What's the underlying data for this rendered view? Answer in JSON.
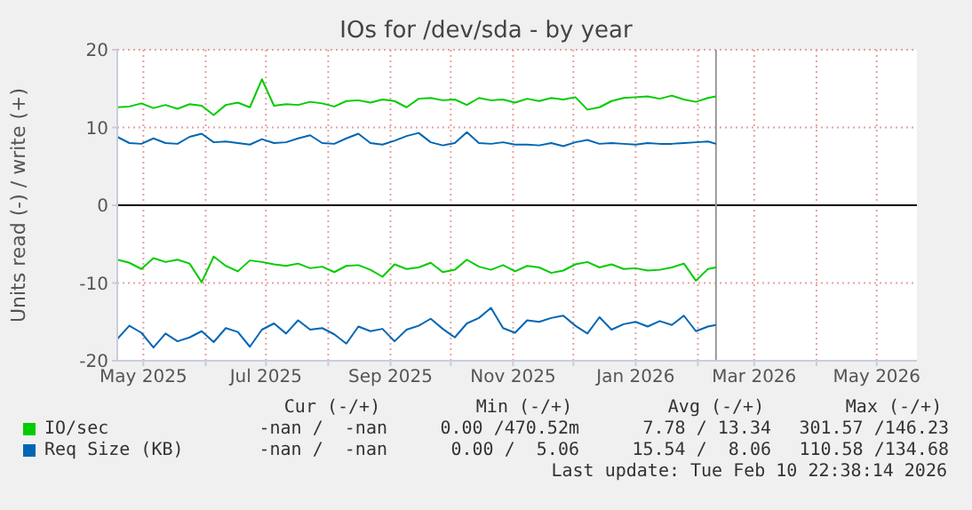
{
  "chart_data": {
    "type": "line",
    "title": "IOs for /dev/sda - by year",
    "ylabel": "Units read (-) / write (+)",
    "x": [
      "2025-04-18",
      "2025-04-24",
      "2025-04-30",
      "2025-05-06",
      "2025-05-12",
      "2025-05-18",
      "2025-05-24",
      "2025-05-30",
      "2025-06-05",
      "2025-06-11",
      "2025-06-17",
      "2025-06-23",
      "2025-06-29",
      "2025-07-05",
      "2025-07-11",
      "2025-07-17",
      "2025-07-23",
      "2025-07-29",
      "2025-08-04",
      "2025-08-10",
      "2025-08-16",
      "2025-08-22",
      "2025-08-28",
      "2025-09-03",
      "2025-09-09",
      "2025-09-15",
      "2025-09-21",
      "2025-09-27",
      "2025-10-03",
      "2025-10-09",
      "2025-10-15",
      "2025-10-21",
      "2025-10-27",
      "2025-11-02",
      "2025-11-08",
      "2025-11-14",
      "2025-11-20",
      "2025-11-26",
      "2025-12-02",
      "2025-12-08",
      "2025-12-14",
      "2025-12-20",
      "2025-12-26",
      "2026-01-01",
      "2026-01-07",
      "2026-01-13",
      "2026-01-19",
      "2026-01-25",
      "2026-01-31",
      "2026-02-06",
      "2026-02-10"
    ],
    "series": [
      {
        "name": "IO/sec",
        "color": "#00cc00",
        "values": [
          12.6,
          12.7,
          13.1,
          12.5,
          12.9,
          12.4,
          13.0,
          12.8,
          11.6,
          12.9,
          13.2,
          12.6,
          16.2,
          12.8,
          13.0,
          12.9,
          13.3,
          13.1,
          12.7,
          13.4,
          13.5,
          13.2,
          13.6,
          13.4,
          12.6,
          13.7,
          13.8,
          13.5,
          13.6,
          12.9,
          13.8,
          13.5,
          13.6,
          13.2,
          13.7,
          13.4,
          13.8,
          13.6,
          13.9,
          12.3,
          12.6,
          13.4,
          13.8,
          13.9,
          14.0,
          13.7,
          14.1,
          13.6,
          13.3,
          13.8,
          14.0
        ]
      },
      {
        "name": "Req Size (KB)",
        "color": "#0066b3",
        "values": [
          8.8,
          8.0,
          7.9,
          8.6,
          8.0,
          7.9,
          8.8,
          9.2,
          8.1,
          8.2,
          8.0,
          7.8,
          8.5,
          8.0,
          8.1,
          8.6,
          9.0,
          8.0,
          7.9,
          8.6,
          9.2,
          8.0,
          7.8,
          8.3,
          8.9,
          9.3,
          8.1,
          7.7,
          8.0,
          9.4,
          8.0,
          7.9,
          8.1,
          7.8,
          7.8,
          7.7,
          8.0,
          7.6,
          8.1,
          8.4,
          7.9,
          8.0,
          7.9,
          7.8,
          8.0,
          7.9,
          7.9,
          8.0,
          8.1,
          8.2,
          7.9
        ]
      },
      {
        "color": "#00cc00",
        "values": [
          -7.0,
          -7.4,
          -8.2,
          -6.8,
          -7.3,
          -7.0,
          -7.5,
          -9.9,
          -6.6,
          -7.8,
          -8.5,
          -7.1,
          -7.3,
          -7.6,
          -7.8,
          -7.5,
          -8.1,
          -7.9,
          -8.6,
          -7.8,
          -7.7,
          -8.3,
          -9.2,
          -7.6,
          -8.2,
          -8.0,
          -7.4,
          -8.6,
          -8.3,
          -7.0,
          -7.9,
          -8.3,
          -7.7,
          -8.5,
          -7.8,
          -8.0,
          -8.7,
          -8.4,
          -7.6,
          -7.3,
          -8.0,
          -7.6,
          -8.2,
          -8.1,
          -8.4,
          -8.3,
          -8.0,
          -7.5,
          -9.7,
          -8.2,
          -8.0
        ]
      },
      {
        "color": "#0066b3",
        "values": [
          -17.2,
          -15.5,
          -16.4,
          -18.3,
          -16.5,
          -17.5,
          -17.0,
          -16.2,
          -17.6,
          -15.8,
          -16.3,
          -18.2,
          -16.0,
          -15.2,
          -16.5,
          -14.8,
          -16.0,
          -15.8,
          -16.6,
          -17.8,
          -15.6,
          -16.2,
          -15.9,
          -17.5,
          -16.0,
          -15.5,
          -14.6,
          -15.9,
          -17.0,
          -15.2,
          -14.5,
          -13.2,
          -15.8,
          -16.4,
          -14.8,
          -15.0,
          -14.5,
          -14.2,
          -15.5,
          -16.5,
          -14.4,
          -16.0,
          -15.3,
          -15.0,
          -15.6,
          -14.9,
          -15.4,
          -14.2,
          -16.2,
          -15.6,
          -15.4
        ]
      }
    ],
    "xlim": [
      "2025-04-18",
      "2026-05-21"
    ],
    "xticks": [
      {
        "value": "2025-05-01",
        "label": "May 2025"
      },
      {
        "value": "2025-06-01",
        "label": null
      },
      {
        "value": "2025-07-01",
        "label": "Jul 2025"
      },
      {
        "value": "2025-08-01",
        "label": null
      },
      {
        "value": "2025-09-01",
        "label": "Sep 2025"
      },
      {
        "value": "2025-10-01",
        "label": null
      },
      {
        "value": "2025-11-01",
        "label": "Nov 2025"
      },
      {
        "value": "2025-12-01",
        "label": null
      },
      {
        "value": "2026-01-01",
        "label": "Jan 2026"
      },
      {
        "value": "2026-02-01",
        "label": null
      },
      {
        "value": "2026-03-01",
        "label": "Mar 2026"
      },
      {
        "value": "2026-04-01",
        "label": null
      },
      {
        "value": "2026-05-01",
        "label": "May 2026"
      }
    ],
    "ylim": [
      -20,
      20
    ],
    "yticks": [
      -20,
      -10,
      0,
      10,
      20
    ],
    "grid": true,
    "legend": "bottom",
    "marker": "none",
    "ref_lines": [
      {
        "axis": "y",
        "value": 0,
        "color": "#000000"
      },
      {
        "axis": "x",
        "value": "2026-02-10",
        "color": "#999999"
      }
    ],
    "annotations": [
      "Cur (-/+)",
      "Min (-/+)",
      "Avg (-/+)",
      "Max (-/+)",
      "-nan /  -nan",
      "0.00 /470.52m",
      "7.78 / 13.34",
      "301.57 /146.23",
      "-nan /  -nan",
      "0.00 /  5.06",
      "15.54 /  8.06",
      "110.58 /134.68",
      "Last update: Tue Feb 10 22:38:14 2026"
    ]
  }
}
